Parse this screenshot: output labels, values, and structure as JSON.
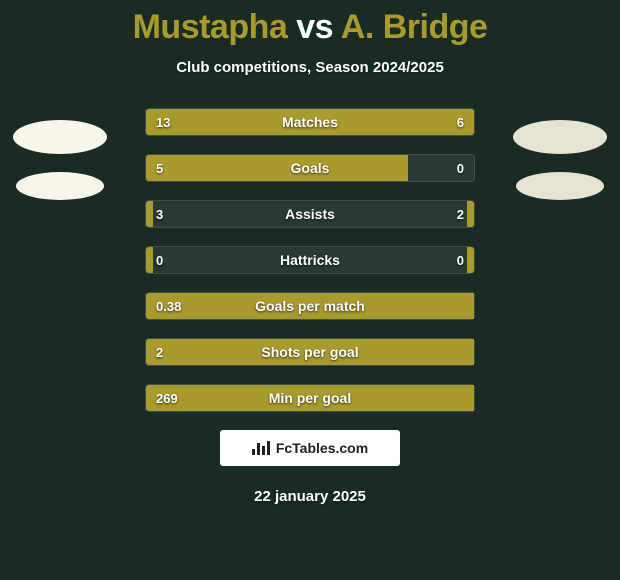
{
  "title": {
    "player1": "Mustapha",
    "vs": "vs",
    "player2": "A. Bridge"
  },
  "subtitle": "Club competitions, Season 2024/2025",
  "colors": {
    "accent": "#a89a2d",
    "background": "#1a2b24",
    "bar_track": "#2a3a32",
    "text": "#ffffff"
  },
  "avatar_colors": {
    "left": "#f8f6ea",
    "right": "#e6e3d0"
  },
  "stats": [
    {
      "label": "Matches",
      "left_value": "13",
      "right_value": "6",
      "left_fill_pct": 68,
      "right_fill_pct": 32
    },
    {
      "label": "Goals",
      "left_value": "5",
      "right_value": "0",
      "left_fill_pct": 80,
      "right_fill_pct": 0
    },
    {
      "label": "Assists",
      "left_value": "3",
      "right_value": "2",
      "left_fill_pct": 2,
      "right_fill_pct": 2
    },
    {
      "label": "Hattricks",
      "left_value": "0",
      "right_value": "0",
      "left_fill_pct": 2,
      "right_fill_pct": 2
    },
    {
      "label": "Goals per match",
      "left_value": "0.38",
      "right_value": "",
      "left_fill_pct": 100,
      "right_fill_pct": 0
    },
    {
      "label": "Shots per goal",
      "left_value": "2",
      "right_value": "",
      "left_fill_pct": 100,
      "right_fill_pct": 0
    },
    {
      "label": "Min per goal",
      "left_value": "269",
      "right_value": "",
      "left_fill_pct": 100,
      "right_fill_pct": 0
    }
  ],
  "attribution": "FcTables.com",
  "date": "22 january 2025"
}
